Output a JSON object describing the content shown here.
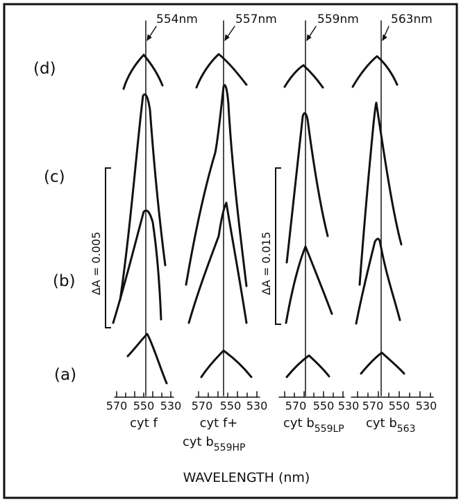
{
  "rows": [
    {
      "id": "d",
      "label": "(d)"
    },
    {
      "id": "c",
      "label": "(c)"
    },
    {
      "id": "b",
      "label": "(b)"
    },
    {
      "id": "a",
      "label": "(a)"
    }
  ],
  "panels": [
    {
      "id": "cyt-f",
      "peak_label": "554nm",
      "caption": [
        "cyt f"
      ],
      "tick_labels": [
        "570",
        "550",
        "530"
      ]
    },
    {
      "id": "cyt-f-plus-b559hp",
      "peak_label": "557nm",
      "caption": [
        "cyt f+",
        "cyt b559HP"
      ],
      "tick_labels": [
        "570",
        "550",
        "530"
      ]
    },
    {
      "id": "cyt-b559lp",
      "peak_label": "559nm",
      "caption": [
        "cyt b559LP"
      ],
      "tick_labels": [
        "570",
        "550",
        "530"
      ]
    },
    {
      "id": "cyt-b563",
      "peak_label": "563nm",
      "caption": [
        "cyt b563"
      ],
      "tick_labels": [
        "570",
        "550",
        "530"
      ]
    }
  ],
  "scale_bars": [
    {
      "id": "left",
      "label": "ΔA = 0.005"
    },
    {
      "id": "right",
      "label": "ΔA = 0.015"
    }
  ],
  "x_axis_title": "WAVELENGTH (nm)",
  "colors": {
    "ink": "#111111",
    "background": "#ffffff"
  }
}
